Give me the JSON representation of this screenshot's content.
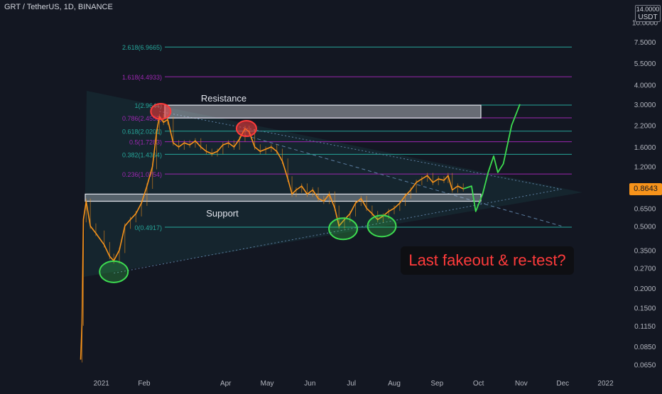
{
  "header": {
    "symbol_title": "GRT / TetherUS, 1D, BINANCE"
  },
  "price_scale": {
    "currency_top": "14.0000",
    "currency": "USDT",
    "labels": [
      "10.0000",
      "7.5000",
      "5.5000",
      "4.0000",
      "3.0000",
      "2.2000",
      "1.6000",
      "1.2000",
      "0.8643",
      "0.6500",
      "0.5000",
      "0.3500",
      "0.2700",
      "0.2000",
      "0.1500",
      "0.1150",
      "0.0850",
      "0.0650"
    ],
    "current_price": "0.8643",
    "current_price_color": "#f7931a"
  },
  "time_scale": {
    "labels": [
      "2021",
      "Feb",
      "Apr",
      "May",
      "Jun",
      "Jul",
      "Aug",
      "Sep",
      "Oct",
      "Nov",
      "Dec",
      "2022"
    ]
  },
  "annotations": {
    "resistance_label": "Resistance",
    "support_label": "Support",
    "callout_text": "Last fakeout & re-test?"
  },
  "fib_levels": [
    {
      "label": "2.618(6.9665)",
      "price": 6.9665,
      "color": "#26a69a"
    },
    {
      "label": "1.618(4.4933)",
      "price": 4.4933,
      "color": "#9c27b0"
    },
    {
      "label": "1(2.9644)",
      "price": 2.9644,
      "color": "#26a69a"
    },
    {
      "label": "0.786(2.4553)",
      "price": 2.4553,
      "color": "#9c27b0"
    },
    {
      "label": "0.618(2.0201)",
      "price": 2.0201,
      "color": "#26a69a"
    },
    {
      "label": "0.5(1.7283)",
      "price": 1.7283,
      "color": "#9c27b0"
    },
    {
      "label": "0.382(1.4364)",
      "price": 1.4364,
      "color": "#26a69a"
    },
    {
      "label": "0.236(1.0754)",
      "price": 1.0754,
      "color": "#9c27b0"
    },
    {
      "label": "0(0.4917)",
      "price": 0.4917,
      "color": "#26a69a"
    }
  ],
  "chart_data": {
    "type": "candlestick",
    "title": "GRT / TetherUS, 1D, BINANCE",
    "xlabel": "",
    "ylabel": "",
    "y_scale": "log",
    "ylim": [
      0.055,
      14.0
    ],
    "x_range": [
      "2020-12-17",
      "2022-01-20"
    ],
    "zones": {
      "resistance": {
        "from": 2.45,
        "to": 2.96
      },
      "support": {
        "from": 0.72,
        "to": 0.8
      }
    },
    "series": [
      {
        "kind": "close",
        "color": "#f7931a",
        "points": [
          [
            "2020-12-17",
            0.07
          ],
          [
            "2020-12-18",
            0.12
          ],
          [
            "2020-12-19",
            0.55
          ],
          [
            "2020-12-21",
            0.72
          ],
          [
            "2020-12-24",
            0.5
          ],
          [
            "2020-12-28",
            0.45
          ],
          [
            "2021-01-03",
            0.38
          ],
          [
            "2021-01-07",
            0.32
          ],
          [
            "2021-01-10",
            0.3
          ],
          [
            "2021-01-14",
            0.35
          ],
          [
            "2021-01-18",
            0.5
          ],
          [
            "2021-01-22",
            0.55
          ],
          [
            "2021-01-26",
            0.6
          ],
          [
            "2021-01-30",
            0.7
          ],
          [
            "2021-02-03",
            0.9
          ],
          [
            "2021-02-07",
            1.2
          ],
          [
            "2021-02-10",
            2.0
          ],
          [
            "2021-02-12",
            2.5
          ],
          [
            "2021-02-15",
            2.3
          ],
          [
            "2021-02-18",
            2.4
          ],
          [
            "2021-02-22",
            1.7
          ],
          [
            "2021-02-26",
            1.6
          ],
          [
            "2021-03-02",
            1.7
          ],
          [
            "2021-03-06",
            1.65
          ],
          [
            "2021-03-10",
            1.75
          ],
          [
            "2021-03-14",
            1.6
          ],
          [
            "2021-03-18",
            1.5
          ],
          [
            "2021-03-22",
            1.45
          ],
          [
            "2021-03-26",
            1.5
          ],
          [
            "2021-03-30",
            1.65
          ],
          [
            "2021-04-03",
            1.7
          ],
          [
            "2021-04-07",
            1.6
          ],
          [
            "2021-04-11",
            1.8
          ],
          [
            "2021-04-15",
            2.1
          ],
          [
            "2021-04-18",
            2.0
          ],
          [
            "2021-04-22",
            1.6
          ],
          [
            "2021-04-26",
            1.5
          ],
          [
            "2021-04-30",
            1.55
          ],
          [
            "2021-05-04",
            1.6
          ],
          [
            "2021-05-08",
            1.5
          ],
          [
            "2021-05-12",
            1.3
          ],
          [
            "2021-05-16",
            1.0
          ],
          [
            "2021-05-19",
            0.8
          ],
          [
            "2021-05-22",
            0.85
          ],
          [
            "2021-05-26",
            0.9
          ],
          [
            "2021-05-30",
            0.8
          ],
          [
            "2021-06-03",
            0.85
          ],
          [
            "2021-06-07",
            0.75
          ],
          [
            "2021-06-11",
            0.72
          ],
          [
            "2021-06-15",
            0.8
          ],
          [
            "2021-06-19",
            0.65
          ],
          [
            "2021-06-22",
            0.5
          ],
          [
            "2021-06-26",
            0.55
          ],
          [
            "2021-06-30",
            0.6
          ],
          [
            "2021-07-04",
            0.7
          ],
          [
            "2021-07-08",
            0.75
          ],
          [
            "2021-07-12",
            0.65
          ],
          [
            "2021-07-16",
            0.6
          ],
          [
            "2021-07-20",
            0.55
          ],
          [
            "2021-07-24",
            0.58
          ],
          [
            "2021-07-28",
            0.62
          ],
          [
            "2021-08-01",
            0.65
          ],
          [
            "2021-08-05",
            0.7
          ],
          [
            "2021-08-09",
            0.78
          ],
          [
            "2021-08-13",
            0.85
          ],
          [
            "2021-08-17",
            0.95
          ],
          [
            "2021-08-21",
            1.0
          ],
          [
            "2021-08-25",
            1.05
          ],
          [
            "2021-08-29",
            0.95
          ],
          [
            "2021-09-02",
            1.0
          ],
          [
            "2021-09-06",
            0.98
          ],
          [
            "2021-09-09",
            1.05
          ],
          [
            "2021-09-12",
            0.85
          ],
          [
            "2021-09-16",
            0.9
          ],
          [
            "2021-09-20",
            0.8643
          ]
        ]
      },
      {
        "kind": "projection",
        "color": "#3ddc50",
        "points": [
          [
            "2021-09-20",
            0.8643
          ],
          [
            "2021-09-26",
            0.9
          ],
          [
            "2021-09-29",
            0.62
          ],
          [
            "2021-10-04",
            0.8
          ],
          [
            "2021-10-08",
            1.1
          ],
          [
            "2021-10-12",
            1.4
          ],
          [
            "2021-10-15",
            1.1
          ],
          [
            "2021-10-19",
            1.25
          ],
          [
            "2021-10-25",
            2.2
          ],
          [
            "2021-10-31",
            3.0
          ]
        ]
      }
    ],
    "trendlines": [
      {
        "from": [
          "2021-01-10",
          0.25
        ],
        "to": [
          "2021-11-30",
          0.86
        ],
        "style": "dotted"
      },
      {
        "from": [
          "2021-02-12",
          2.7
        ],
        "to": [
          "2021-11-30",
          0.86
        ],
        "style": "dotted"
      },
      {
        "from": [
          "2021-04-15",
          1.9
        ],
        "to": [
          "2021-11-30",
          0.5
        ],
        "style": "dashed"
      }
    ],
    "highlights": [
      {
        "date": "2021-01-10",
        "price": 0.255,
        "color": "#3ddc50"
      },
      {
        "date": "2021-06-25",
        "price": 0.48,
        "color": "#3ddc50"
      },
      {
        "date": "2021-07-23",
        "price": 0.5,
        "color": "#3ddc50"
      },
      {
        "date": "2021-02-13",
        "price": 2.7,
        "color": "#ff3b3b"
      },
      {
        "date": "2021-04-16",
        "price": 2.1,
        "color": "#ff3b3b"
      }
    ]
  }
}
